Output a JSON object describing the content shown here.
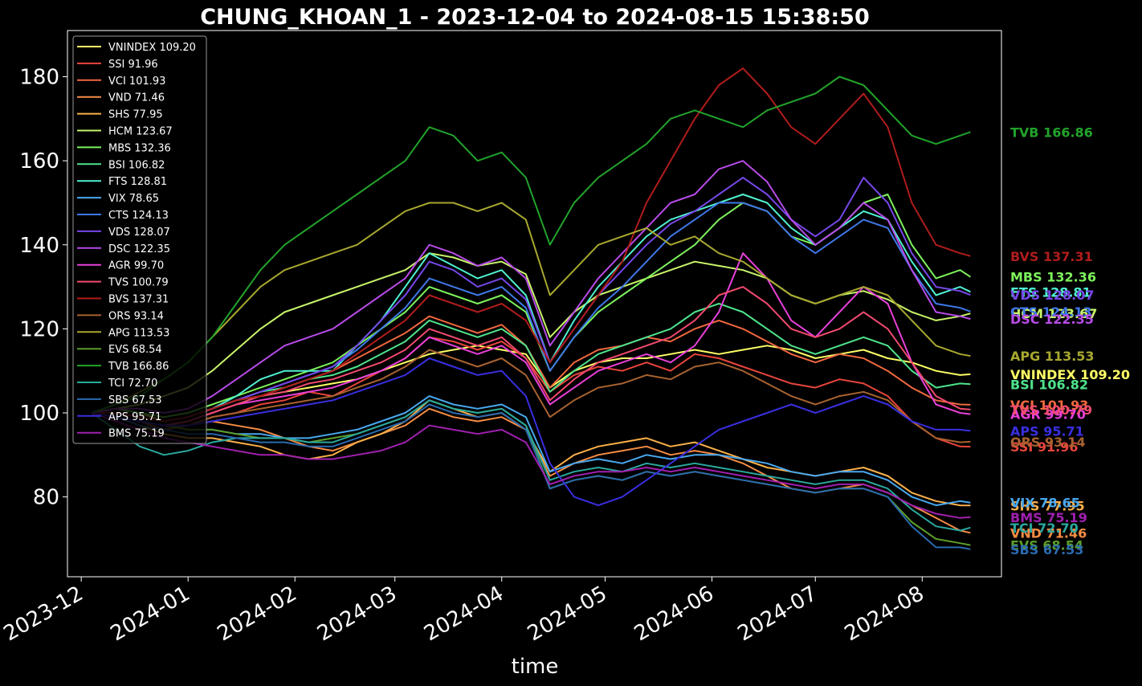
{
  "chart_data": {
    "type": "line",
    "title": "CHUNG_KHOAN_1 - 2023-12-04 to 2024-08-15 15:38:50",
    "xlabel": "time",
    "ylabel": "",
    "x_range": [
      "2023-11-27",
      "2024-08-24"
    ],
    "ylim": [
      61,
      191
    ],
    "grid": false,
    "legend_position": "top-left",
    "x_ticks": [
      "2023-12",
      "2024-01",
      "2024-02",
      "2024-03",
      "2024-04",
      "2024-05",
      "2024-06",
      "2024-07",
      "2024-08"
    ],
    "y_ticks": [
      80,
      100,
      120,
      140,
      160,
      180
    ],
    "dates": [
      "2023-12-04",
      "2023-12-11",
      "2023-12-18",
      "2023-12-25",
      "2024-01-01",
      "2024-01-08",
      "2024-01-15",
      "2024-01-22",
      "2024-01-29",
      "2024-02-05",
      "2024-02-12",
      "2024-02-19",
      "2024-02-26",
      "2024-03-04",
      "2024-03-11",
      "2024-03-18",
      "2024-03-25",
      "2024-04-01",
      "2024-04-08",
      "2024-04-15",
      "2024-04-22",
      "2024-04-29",
      "2024-05-06",
      "2024-05-13",
      "2024-05-20",
      "2024-05-27",
      "2024-06-03",
      "2024-06-10",
      "2024-06-17",
      "2024-06-24",
      "2024-07-01",
      "2024-07-08",
      "2024-07-15",
      "2024-07-22",
      "2024-07-29",
      "2024-08-05",
      "2024-08-12",
      "2024-08-15"
    ],
    "series": [
      {
        "name": "VNINDEX",
        "label": "VNINDEX 109.20",
        "color": "#ffff66",
        "values": [
          100,
          101,
          100,
          98,
          99,
          101,
          103,
          104,
          105,
          106,
          107,
          108,
          110,
          112,
          114,
          115,
          116,
          115,
          114,
          106,
          110,
          112,
          113,
          113,
          114,
          115,
          114,
          115,
          116,
          115,
          113,
          114,
          115,
          113,
          112,
          110,
          109,
          109.2
        ]
      },
      {
        "name": "SSI",
        "label": "SSI 91.96",
        "color": "#e8453c",
        "values": [
          100,
          99,
          98,
          96,
          97,
          99,
          100,
          102,
          103,
          105,
          104,
          107,
          110,
          113,
          118,
          117,
          115,
          117,
          113,
          105,
          109,
          111,
          110,
          112,
          110,
          114,
          113,
          111,
          109,
          107,
          106,
          108,
          107,
          104,
          98,
          94,
          92,
          91.96
        ]
      },
      {
        "name": "VCI",
        "label": "VCI 101.93",
        "color": "#f0683f",
        "values": [
          100,
          100,
          99,
          98,
          99,
          101,
          103,
          104,
          106,
          108,
          110,
          113,
          116,
          119,
          123,
          121,
          119,
          121,
          116,
          106,
          112,
          115,
          116,
          118,
          117,
          120,
          122,
          120,
          117,
          114,
          112,
          114,
          113,
          110,
          106,
          103,
          102,
          101.93
        ]
      },
      {
        "name": "VND",
        "label": "VND 71.46",
        "color": "#f58c45",
        "values": [
          100,
          99,
          98,
          97,
          97,
          98,
          97,
          96,
          94,
          92,
          91,
          93,
          95,
          97,
          101,
          99,
          98,
          99,
          96,
          85,
          88,
          90,
          91,
          92,
          90,
          91,
          90,
          88,
          85,
          82,
          81,
          82,
          83,
          81,
          78,
          75,
          72,
          71.46
        ]
      },
      {
        "name": "SHS",
        "label": "SHS 77.95",
        "color": "#fbb04a",
        "values": [
          100,
          99,
          97,
          95,
          94,
          94,
          93,
          92,
          90,
          89,
          90,
          93,
          95,
          98,
          103,
          101,
          99,
          100,
          96,
          86,
          90,
          92,
          93,
          94,
          92,
          93,
          91,
          89,
          87,
          86,
          85,
          86,
          87,
          85,
          81,
          79,
          78,
          77.95
        ]
      },
      {
        "name": "HCM",
        "label": "HCM 123.67",
        "color": "#c8f56a",
        "values": [
          100,
          101,
          102,
          104,
          106,
          110,
          115,
          120,
          124,
          126,
          128,
          130,
          132,
          134,
          138,
          137,
          135,
          136,
          133,
          118,
          124,
          128,
          130,
          132,
          134,
          136,
          135,
          134,
          132,
          128,
          126,
          128,
          129,
          127,
          124,
          122,
          123,
          123.67
        ]
      },
      {
        "name": "MBS",
        "label": "MBS 132.36",
        "color": "#7df25c",
        "values": [
          100,
          101,
          100,
          99,
          100,
          102,
          104,
          106,
          108,
          110,
          112,
          116,
          120,
          124,
          130,
          128,
          126,
          128,
          124,
          110,
          118,
          124,
          128,
          132,
          136,
          140,
          146,
          150,
          148,
          142,
          140,
          144,
          150,
          152,
          140,
          132,
          134,
          132.36
        ]
      },
      {
        "name": "BSI",
        "label": "BSI 106.82",
        "color": "#4ee38c",
        "values": [
          100,
          100,
          99,
          98,
          99,
          101,
          103,
          105,
          106,
          108,
          109,
          111,
          114,
          117,
          122,
          120,
          118,
          120,
          116,
          105,
          110,
          114,
          116,
          118,
          120,
          124,
          126,
          124,
          120,
          116,
          114,
          116,
          118,
          116,
          110,
          106,
          107,
          106.82
        ]
      },
      {
        "name": "FTS",
        "label": "FTS 128.81",
        "color": "#4ff0d0",
        "values": [
          100,
          100,
          99,
          98,
          99,
          101,
          104,
          108,
          110,
          110,
          110,
          116,
          122,
          130,
          138,
          135,
          132,
          134,
          128,
          112,
          122,
          130,
          136,
          142,
          146,
          148,
          150,
          152,
          150,
          144,
          140,
          144,
          148,
          146,
          136,
          128,
          130,
          128.81
        ]
      },
      {
        "name": "VIX",
        "label": "VIX 78.65",
        "color": "#49a8ee",
        "values": [
          100,
          99,
          98,
          97,
          96,
          96,
          95,
          95,
          94,
          94,
          95,
          96,
          98,
          100,
          104,
          102,
          101,
          102,
          99,
          86,
          88,
          89,
          88,
          90,
          89,
          90,
          90,
          89,
          88,
          86,
          85,
          86,
          86,
          84,
          80,
          78,
          79,
          78.65
        ]
      },
      {
        "name": "CTS",
        "label": "CTS 124.13",
        "color": "#3f78e8",
        "values": [
          100,
          100,
          99,
          98,
          99,
          101,
          103,
          105,
          107,
          109,
          111,
          115,
          120,
          125,
          132,
          130,
          128,
          130,
          125,
          110,
          118,
          125,
          130,
          136,
          142,
          146,
          150,
          150,
          148,
          142,
          138,
          142,
          146,
          144,
          134,
          126,
          125,
          124.13
        ]
      },
      {
        "name": "VDS",
        "label": "VDS 128.07",
        "color": "#7647e8",
        "values": [
          100,
          100,
          99,
          98,
          99,
          101,
          103,
          105,
          107,
          109,
          111,
          116,
          122,
          128,
          136,
          134,
          130,
          132,
          127,
          112,
          120,
          128,
          134,
          140,
          145,
          148,
          152,
          156,
          152,
          146,
          142,
          146,
          156,
          150,
          138,
          130,
          129,
          128.07
        ]
      },
      {
        "name": "DSC",
        "label": "DSC 122.35",
        "color": "#b84be8",
        "values": [
          100,
          101,
          101,
          100,
          101,
          104,
          108,
          112,
          116,
          118,
          120,
          124,
          128,
          132,
          140,
          138,
          135,
          137,
          132,
          116,
          124,
          132,
          138,
          144,
          150,
          152,
          158,
          160,
          155,
          146,
          140,
          144,
          150,
          146,
          134,
          124,
          123,
          122.35
        ]
      },
      {
        "name": "AGR",
        "label": "AGR 99.70",
        "color": "#e840d8",
        "values": [
          100,
          99,
          98,
          97,
          98,
          100,
          102,
          103,
          104,
          105,
          106,
          108,
          110,
          113,
          118,
          116,
          114,
          116,
          112,
          102,
          106,
          110,
          112,
          114,
          112,
          116,
          124,
          138,
          132,
          122,
          118,
          124,
          130,
          126,
          112,
          102,
          100,
          99.7
        ]
      },
      {
        "name": "TVS",
        "label": "TVS 100.79",
        "color": "#f04a6e",
        "values": [
          100,
          99,
          98,
          97,
          98,
          100,
          102,
          104,
          105,
          107,
          108,
          110,
          112,
          115,
          120,
          118,
          116,
          118,
          113,
          103,
          108,
          112,
          114,
          116,
          118,
          122,
          128,
          130,
          126,
          120,
          118,
          120,
          124,
          120,
          112,
          104,
          101,
          100.79
        ]
      },
      {
        "name": "BVS",
        "label": "BVS 137.31",
        "color": "#b01c1c",
        "values": [
          100,
          100,
          99,
          98,
          99,
          101,
          103,
          104,
          106,
          108,
          110,
          114,
          118,
          122,
          128,
          126,
          124,
          126,
          122,
          112,
          120,
          128,
          136,
          150,
          160,
          170,
          178,
          182,
          176,
          168,
          164,
          170,
          176,
          168,
          150,
          140,
          138,
          137.31
        ]
      },
      {
        "name": "ORS",
        "label": "ORS 93.14",
        "color": "#a86230",
        "values": [
          100,
          99,
          98,
          96,
          97,
          99,
          100,
          101,
          102,
          103,
          104,
          106,
          108,
          111,
          115,
          113,
          111,
          113,
          109,
          99,
          103,
          106,
          107,
          109,
          108,
          111,
          112,
          110,
          107,
          104,
          102,
          104,
          105,
          103,
          98,
          94,
          93,
          93.14
        ]
      },
      {
        "name": "APG",
        "label": "APG 113.53",
        "color": "#a8a830",
        "values": [
          100,
          102,
          105,
          108,
          112,
          118,
          124,
          130,
          134,
          136,
          138,
          140,
          144,
          148,
          150,
          150,
          148,
          150,
          146,
          128,
          134,
          140,
          142,
          144,
          140,
          142,
          138,
          136,
          132,
          128,
          126,
          128,
          130,
          128,
          122,
          116,
          114,
          113.53
        ]
      },
      {
        "name": "EVS",
        "label": "EVS 68.54",
        "color": "#5c9e2a",
        "values": [
          100,
          99,
          98,
          97,
          96,
          96,
          95,
          94,
          94,
          93,
          94,
          95,
          97,
          99,
          103,
          101,
          100,
          101,
          97,
          82,
          84,
          85,
          84,
          86,
          85,
          86,
          85,
          84,
          83,
          82,
          81,
          82,
          82,
          80,
          74,
          70,
          69,
          68.54
        ]
      },
      {
        "name": "TVB",
        "label": "TVB 166.86",
        "color": "#22a32b",
        "values": [
          100,
          102,
          104,
          108,
          112,
          118,
          126,
          134,
          140,
          144,
          148,
          152,
          156,
          160,
          168,
          166,
          160,
          162,
          156,
          140,
          150,
          156,
          160,
          164,
          170,
          172,
          170,
          168,
          172,
          174,
          176,
          180,
          178,
          172,
          166,
          164,
          166,
          166.86
        ]
      },
      {
        "name": "TCI",
        "label": "TCI 72.70",
        "color": "#2aa89e",
        "values": [
          100,
          96,
          92,
          90,
          91,
          93,
          94,
          94,
          94,
          93,
          93,
          95,
          97,
          99,
          103,
          101,
          100,
          101,
          97,
          84,
          86,
          87,
          86,
          88,
          87,
          88,
          87,
          86,
          85,
          84,
          83,
          84,
          84,
          82,
          77,
          73,
          72,
          72.7
        ]
      },
      {
        "name": "SBS",
        "label": "SBS 67.53",
        "color": "#2a6ab0",
        "values": [
          100,
          99,
          97,
          96,
          95,
          95,
          94,
          93,
          93,
          92,
          92,
          94,
          96,
          98,
          102,
          100,
          99,
          100,
          96,
          82,
          84,
          85,
          84,
          86,
          85,
          86,
          85,
          84,
          83,
          82,
          81,
          82,
          82,
          80,
          73,
          68,
          68,
          67.53
        ]
      },
      {
        "name": "APS",
        "label": "APS 95.71",
        "color": "#3a2ee0",
        "values": [
          100,
          99,
          98,
          97,
          97,
          98,
          99,
          100,
          101,
          102,
          103,
          105,
          107,
          109,
          113,
          111,
          109,
          110,
          104,
          88,
          80,
          78,
          80,
          84,
          88,
          92,
          96,
          98,
          100,
          102,
          100,
          102,
          104,
          102,
          98,
          96,
          96,
          95.71
        ]
      },
      {
        "name": "BMS",
        "label": "BMS 75.19",
        "color": "#a020b0",
        "values": [
          100,
          98,
          96,
          94,
          93,
          92,
          91,
          90,
          90,
          89,
          89,
          90,
          91,
          93,
          97,
          96,
          95,
          96,
          93,
          83,
          85,
          86,
          86,
          87,
          86,
          87,
          86,
          85,
          84,
          83,
          82,
          83,
          83,
          81,
          78,
          76,
          75,
          75.19
        ]
      }
    ]
  }
}
